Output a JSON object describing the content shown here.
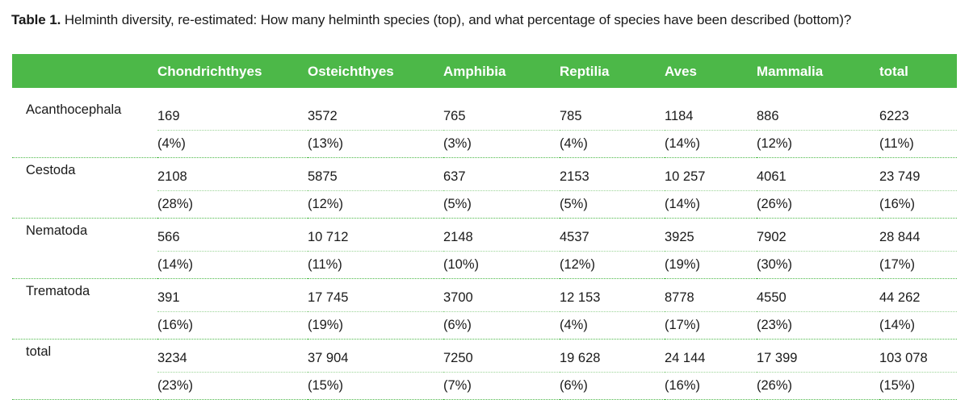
{
  "caption": {
    "label": "Table 1.",
    "text": "Helminth diversity, re-estimated: How many helminth species (top), and what percentage of species have been described (bottom)?"
  },
  "table": {
    "headers": [
      "",
      "Chondrichthyes",
      "Osteichthyes",
      "Amphibia",
      "Reptilia",
      "Aves",
      "Mammalia",
      "total"
    ],
    "rows": [
      {
        "name": "Acanthocephala",
        "counts": [
          "169",
          "3572",
          "765",
          "785",
          "1184",
          "886",
          "6223"
        ],
        "percents": [
          "(4%)",
          "(13%)",
          "(3%)",
          "(4%)",
          "(14%)",
          "(12%)",
          "(11%)"
        ]
      },
      {
        "name": "Cestoda",
        "counts": [
          "2108",
          "5875",
          "637",
          "2153",
          "10 257",
          "4061",
          "23 749"
        ],
        "percents": [
          "(28%)",
          "(12%)",
          "(5%)",
          "(5%)",
          "(14%)",
          "(26%)",
          "(16%)"
        ]
      },
      {
        "name": "Nematoda",
        "counts": [
          "566",
          "10 712",
          "2148",
          "4537",
          "3925",
          "7902",
          "28 844"
        ],
        "percents": [
          "(14%)",
          "(11%)",
          "(10%)",
          "(12%)",
          "(19%)",
          "(30%)",
          "(17%)"
        ]
      },
      {
        "name": "Trematoda",
        "counts": [
          "391",
          "17 745",
          "3700",
          "12 153",
          "8778",
          "4550",
          "44 262"
        ],
        "percents": [
          "(16%)",
          "(19%)",
          "(6%)",
          "(4%)",
          "(17%)",
          "(23%)",
          "(14%)"
        ]
      },
      {
        "name": "total",
        "counts": [
          "3234",
          "37 904",
          "7250",
          "19 628",
          "24 144",
          "17 399",
          "103 078"
        ],
        "percents": [
          "(23%)",
          "(15%)",
          "(7%)",
          "(6%)",
          "(16%)",
          "(26%)",
          "(15%)"
        ]
      }
    ]
  },
  "colors": {
    "header_bg": "#4cb848",
    "header_text": "#ffffff",
    "rule": "#4cb848"
  }
}
